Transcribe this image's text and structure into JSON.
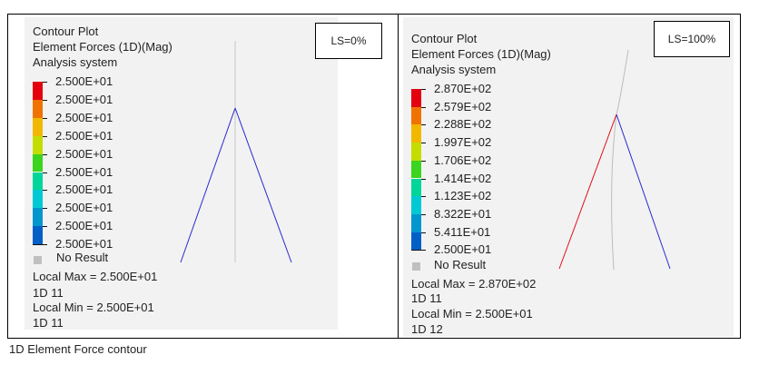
{
  "left": {
    "header": [
      "Contour Plot",
      "Element Forces (1D)(Mag)",
      "Analysis system"
    ],
    "ls_label": "LS=0%",
    "legend": {
      "labels": [
        "2.500E+01",
        "2.500E+01",
        "2.500E+01",
        "2.500E+01",
        "2.500E+01",
        "2.500E+01",
        "2.500E+01",
        "2.500E+01",
        "2.500E+01",
        "2.500E+01"
      ],
      "colors": [
        "#e3000f",
        "#f07300",
        "#f2b800",
        "#c3dd00",
        "#3bd41e",
        "#00d69a",
        "#00c9d3",
        "#0096ce",
        "#0060c8",
        "#1c14b0"
      ]
    },
    "no_result": "No Result",
    "local_max": "Local Max =  2.500E+01",
    "max_elem": "1D 11",
    "local_min": "Local Min =  2.500E+01",
    "min_elem": "1D 11"
  },
  "right": {
    "header": [
      "Contour Plot",
      "Element Forces (1D)(Mag)",
      "Analysis system"
    ],
    "ls_label": "LS=100%",
    "legend": {
      "labels": [
        "2.870E+02",
        "2.579E+02",
        "2.288E+02",
        "1.997E+02",
        "1.706E+02",
        "1.414E+02",
        "1.123E+02",
        "8.322E+01",
        "5.411E+01",
        "2.500E+01"
      ],
      "colors": [
        "#e3000f",
        "#f07300",
        "#f2b800",
        "#c3dd00",
        "#3bd41e",
        "#00d69a",
        "#00c9d3",
        "#0096ce",
        "#0060c8",
        "#1c14b0"
      ]
    },
    "no_result": "No Result",
    "local_max": "Local Max =  2.870E+02",
    "max_elem": "1D 11",
    "local_min": "Local Min =  2.500E+01",
    "min_elem": "1D 12"
  },
  "caption": "1D Element Force contour"
}
